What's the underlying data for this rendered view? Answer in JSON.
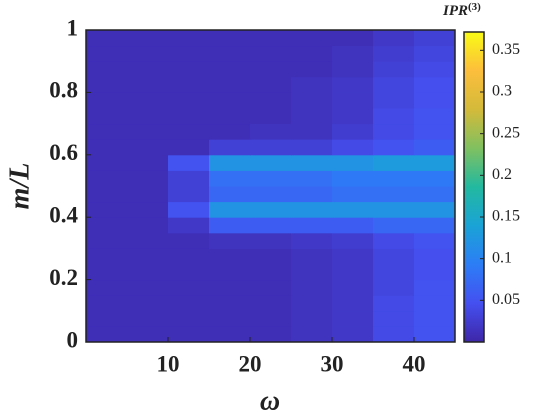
{
  "chart_data": {
    "type": "heatmap",
    "xlabel": "ω",
    "ylabel": "m/L",
    "colorbar_label": "IPR",
    "colorbar_label_sup": "(3)",
    "x_edges": [
      0,
      5,
      10,
      15,
      20,
      25,
      30,
      35,
      40,
      45
    ],
    "y_edges": [
      0,
      0.05,
      0.1,
      0.15,
      0.2,
      0.25,
      0.3,
      0.35,
      0.4,
      0.45,
      0.5,
      0.55,
      0.6,
      0.65,
      0.7,
      0.75,
      0.8,
      0.85,
      0.9,
      0.95,
      1
    ],
    "values": [
      [
        0.01,
        0.01,
        0.01,
        0.01,
        0.01,
        0.015,
        0.02,
        0.04,
        0.05
      ],
      [
        0.01,
        0.01,
        0.01,
        0.01,
        0.01,
        0.015,
        0.02,
        0.04,
        0.05
      ],
      [
        0.01,
        0.01,
        0.01,
        0.01,
        0.01,
        0.015,
        0.02,
        0.04,
        0.05
      ],
      [
        0.01,
        0.01,
        0.01,
        0.01,
        0.01,
        0.015,
        0.02,
        0.035,
        0.05
      ],
      [
        0.01,
        0.01,
        0.01,
        0.01,
        0.01,
        0.015,
        0.02,
        0.035,
        0.045
      ],
      [
        0.01,
        0.01,
        0.01,
        0.01,
        0.01,
        0.015,
        0.02,
        0.035,
        0.045
      ],
      [
        0.01,
        0.01,
        0.01,
        0.015,
        0.015,
        0.02,
        0.025,
        0.04,
        0.05
      ],
      [
        0.01,
        0.01,
        0.02,
        0.06,
        0.06,
        0.06,
        0.06,
        0.07,
        0.07
      ],
      [
        0.01,
        0.01,
        0.05,
        0.12,
        0.12,
        0.12,
        0.12,
        0.12,
        0.12
      ],
      [
        0.01,
        0.01,
        0.03,
        0.07,
        0.07,
        0.07,
        0.08,
        0.08,
        0.08
      ],
      [
        0.01,
        0.01,
        0.03,
        0.08,
        0.08,
        0.08,
        0.09,
        0.09,
        0.09
      ],
      [
        0.01,
        0.01,
        0.05,
        0.12,
        0.12,
        0.12,
        0.12,
        0.13,
        0.13
      ],
      [
        0.01,
        0.01,
        0.01,
        0.03,
        0.03,
        0.03,
        0.04,
        0.05,
        0.06
      ],
      [
        0.01,
        0.01,
        0.01,
        0.01,
        0.015,
        0.015,
        0.025,
        0.04,
        0.05
      ],
      [
        0.01,
        0.01,
        0.01,
        0.01,
        0.01,
        0.015,
        0.02,
        0.04,
        0.05
      ],
      [
        0.01,
        0.01,
        0.01,
        0.01,
        0.01,
        0.015,
        0.02,
        0.035,
        0.045
      ],
      [
        0.01,
        0.01,
        0.01,
        0.01,
        0.01,
        0.015,
        0.02,
        0.035,
        0.045
      ],
      [
        0.01,
        0.01,
        0.01,
        0.01,
        0.01,
        0.01,
        0.015,
        0.03,
        0.04
      ],
      [
        0.01,
        0.01,
        0.01,
        0.01,
        0.01,
        0.01,
        0.015,
        0.025,
        0.035
      ],
      [
        0.01,
        0.01,
        0.01,
        0.01,
        0.01,
        0.01,
        0.01,
        0.02,
        0.03
      ]
    ],
    "xlim": [
      0,
      45
    ],
    "xticks": [
      10,
      20,
      30,
      40
    ],
    "ylim": [
      0,
      1
    ],
    "yticks": [
      0,
      0.2,
      0.4,
      0.6,
      0.8,
      1
    ],
    "clim": [
      0,
      0.372
    ],
    "cticks": [
      0.05,
      0.1,
      0.15,
      0.2,
      0.25,
      0.3,
      0.35
    ],
    "colormap": [
      "#3e26a8",
      "#4450f0",
      "#2c7df6",
      "#1aa3d6",
      "#22b9a0",
      "#80c060",
      "#d4ba3a",
      "#fcbe3c",
      "#f9fb15"
    ]
  }
}
